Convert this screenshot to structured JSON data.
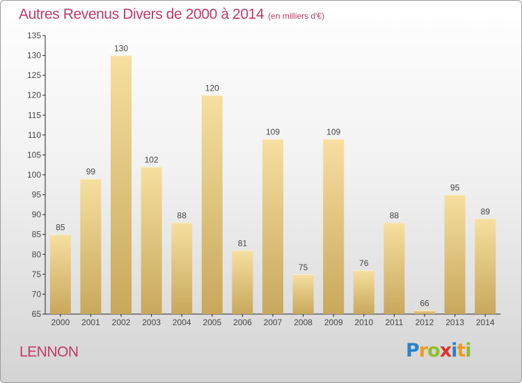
{
  "title": "Autres Revenus Divers de 2000 à 2014",
  "unit_note": "(en milliers d'€)",
  "commune": "LENNON",
  "logo": {
    "text": "Proxiti",
    "letters": [
      {
        "ch": "P",
        "color": "#2a83c8"
      },
      {
        "ch": "r",
        "color": "#f19a1f"
      },
      {
        "ch": "o",
        "color": "#8cbf2f"
      },
      {
        "ch": "x",
        "color": "#e2302f"
      },
      {
        "ch": "i",
        "color": "#2a83c8"
      },
      {
        "ch": "t",
        "color": "#f19a1f"
      },
      {
        "ch": "i",
        "color": "#8cbf2f"
      }
    ]
  },
  "colors": {
    "accent": "#c0396a",
    "bar_light": "#f6dfa0",
    "bar_dark": "#c8a85c"
  },
  "chart_data": {
    "type": "bar",
    "categories": [
      "2000",
      "2001",
      "2002",
      "2003",
      "2004",
      "2005",
      "2006",
      "2007",
      "2008",
      "2009",
      "2010",
      "2011",
      "2012",
      "2013",
      "2014"
    ],
    "values": [
      85,
      99,
      130,
      102,
      88,
      120,
      81,
      109,
      75,
      109,
      76,
      88,
      66,
      95,
      89
    ],
    "ylim": [
      65,
      135
    ],
    "yticks": [
      65,
      70,
      75,
      80,
      85,
      90,
      95,
      100,
      105,
      110,
      115,
      120,
      125,
      130,
      135
    ],
    "grid": false,
    "xlabel": "",
    "ylabel": ""
  }
}
